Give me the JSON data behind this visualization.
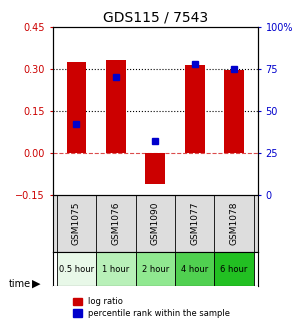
{
  "title": "GDS115 / 7543",
  "samples": [
    "GSM1075",
    "GSM1076",
    "GSM1090",
    "GSM1077",
    "GSM1078"
  ],
  "time_labels": [
    "0.5 hour",
    "1 hour",
    "2 hour",
    "4 hour",
    "6 hour"
  ],
  "time_colors": [
    "#e8f8e8",
    "#b8f0b8",
    "#90e890",
    "#50d050",
    "#22c022"
  ],
  "log_ratios": [
    0.325,
    0.33,
    -0.11,
    0.315,
    0.295
  ],
  "percentile_ranks": [
    42,
    70,
    32,
    78,
    75
  ],
  "bar_color": "#cc0000",
  "dot_color": "#0000cc",
  "ylim_left": [
    -0.15,
    0.45
  ],
  "ylim_right": [
    0,
    100
  ],
  "hline_y": [
    0.15,
    0.3
  ],
  "zero_line_y": 0.0,
  "background_color": "#ffffff",
  "plot_bg": "#ffffff",
  "grid_color": "#cccccc",
  "title_color": "#000000",
  "left_axis_color": "#cc0000",
  "right_axis_color": "#0000cc",
  "bar_width": 0.5
}
